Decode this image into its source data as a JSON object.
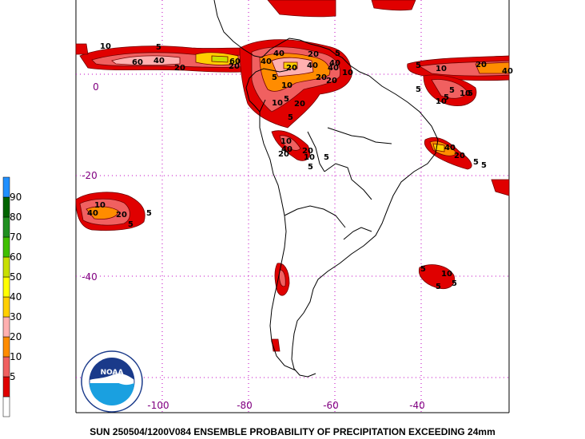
{
  "caption": "SUN 250504/1200V084  ENSEMBLE PROBABILITY OF PRECIPITATION EXCEEDING 24mm",
  "logo": {
    "text": "NOAA",
    "ring_text": "NATIONAL OCEANIC AND ATMOSPHERIC ADMINISTRATION · U.S. DEPARTMENT OF COMMERCE"
  },
  "latitude_labels": [
    "0",
    "-20",
    "-40"
  ],
  "longitude_labels": [
    "-100",
    "-80",
    "-60",
    "-40"
  ],
  "legend": {
    "levels": [
      {
        "label": "",
        "color": "#ffffff"
      },
      {
        "label": "5",
        "color": "#e00000"
      },
      {
        "label": "10",
        "color": "#f06060"
      },
      {
        "label": "20",
        "color": "#ff8c00"
      },
      {
        "label": "30",
        "color": "#ffb0b0"
      },
      {
        "label": "40",
        "color": "#ffd000"
      },
      {
        "label": "50",
        "color": "#ffff00"
      },
      {
        "label": "60",
        "color": "#c8e000"
      },
      {
        "label": "70",
        "color": "#40c000"
      },
      {
        "label": "80",
        "color": "#209020"
      },
      {
        "label": "90",
        "color": "#006400"
      },
      {
        "label": "",
        "color": "#2090ff"
      }
    ]
  },
  "contour_labels": [
    {
      "text": "10"
    },
    {
      "text": "5"
    },
    {
      "text": "60"
    },
    {
      "text": "40"
    },
    {
      "text": "20"
    },
    {
      "text": "60"
    },
    {
      "text": "20"
    },
    {
      "text": "40"
    },
    {
      "text": "20"
    },
    {
      "text": "40"
    },
    {
      "text": "5"
    },
    {
      "text": "20"
    },
    {
      "text": "10"
    },
    {
      "text": "5"
    },
    {
      "text": "20"
    },
    {
      "text": "10"
    },
    {
      "text": "40"
    },
    {
      "text": "20"
    },
    {
      "text": "40"
    },
    {
      "text": "5"
    },
    {
      "text": "5"
    },
    {
      "text": "10"
    },
    {
      "text": "20"
    },
    {
      "text": "40"
    },
    {
      "text": "10"
    },
    {
      "text": "5"
    },
    {
      "text": "5"
    },
    {
      "text": "10"
    },
    {
      "text": "20"
    },
    {
      "text": "40"
    },
    {
      "text": "5"
    },
    {
      "text": "5"
    },
    {
      "text": "10"
    },
    {
      "text": "5"
    },
    {
      "text": "40"
    },
    {
      "text": "20"
    },
    {
      "text": "5"
    },
    {
      "text": "5"
    },
    {
      "text": "5"
    },
    {
      "text": "10"
    },
    {
      "text": "20"
    },
    {
      "text": "40"
    },
    {
      "text": "20"
    },
    {
      "text": "10"
    },
    {
      "text": "5"
    },
    {
      "text": "40"
    },
    {
      "text": "20"
    },
    {
      "text": "5"
    },
    {
      "text": "5"
    },
    {
      "text": "10"
    },
    {
      "text": "5"
    },
    {
      "text": "5"
    },
    {
      "text": "10"
    },
    {
      "text": "5"
    }
  ]
}
